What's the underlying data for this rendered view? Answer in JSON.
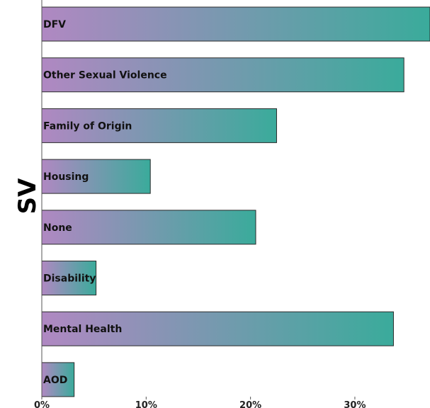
{
  "chart_data": {
    "type": "bar",
    "orientation": "horizontal",
    "ylabel": "SV",
    "xlabel": "",
    "categories": [
      "DFV",
      "Other Sexual Violence",
      "Family of Origin",
      "Housing",
      "None",
      "Disability",
      "Mental Health",
      "AOD"
    ],
    "values": [
      37.2,
      34.7,
      22.5,
      10.4,
      20.5,
      5.2,
      33.7,
      3.1
    ],
    "xlim": [
      0,
      37.2
    ],
    "xticks": [
      0,
      10,
      20,
      30
    ],
    "xtick_labels": [
      "0%",
      "10%",
      "20%",
      "30%"
    ],
    "grid": false,
    "legend": "none",
    "colors": {
      "gradient_start": "#b088c2",
      "gradient_end": "#3aab9b",
      "bar_border": "#2b2b2b",
      "axis": "#555555"
    }
  }
}
